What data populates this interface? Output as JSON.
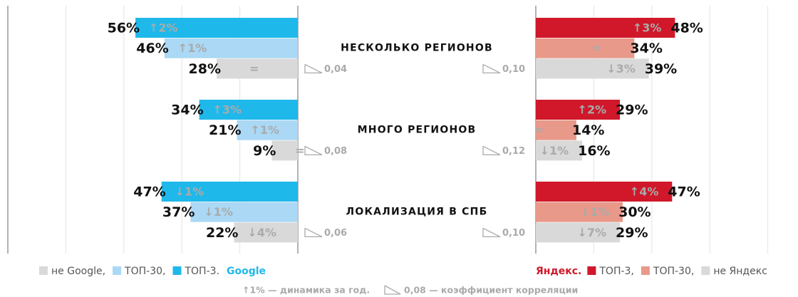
{
  "chart_data": {
    "type": "bar",
    "orientation": "horizontal",
    "categories": [
      "НЕСКОЛЬКО РЕГИОНОВ",
      "МНОГО РЕГИОНОВ",
      "ЛОКАЛИЗАЦИЯ В СПБ"
    ],
    "xlim": [
      0,
      100
    ],
    "xticks": [
      0,
      20,
      40,
      60,
      80,
      100
    ],
    "grid": true,
    "panels": [
      {
        "name": "Google",
        "name_color": "#1fb8ea",
        "direction": "left",
        "series": [
          {
            "name": "ТОП-3.",
            "color": "#1fb8ea",
            "values": [
              56,
              34,
              47
            ],
            "value_labels": [
              "56%",
              "34%",
              "47%"
            ],
            "changes": [
              "↑2%",
              "↑3%",
              "↓1%"
            ]
          },
          {
            "name": "ТОП-30,",
            "color": "#aad8f5",
            "values": [
              46,
              21,
              37
            ],
            "value_labels": [
              "46%",
              "21%",
              "37%"
            ],
            "changes": [
              "↑1%",
              "↑1%",
              "↓1%"
            ]
          },
          {
            "name": "не Google,",
            "color": "#d9d9d9",
            "values": [
              28,
              9,
              22
            ],
            "value_labels": [
              "28%",
              "9%",
              "22%"
            ],
            "changes": [
              "=",
              "=",
              "↓4%"
            ]
          }
        ],
        "correlation": [
          "0,04",
          "0,08",
          "0,06"
        ]
      },
      {
        "name": "Яндекс.",
        "name_color": "#d0182a",
        "direction": "right",
        "series": [
          {
            "name": "ТОП-3,",
            "color": "#d0182a",
            "values": [
              48,
              29,
              47
            ],
            "value_labels": [
              "48%",
              "29%",
              "47%"
            ],
            "changes": [
              "↑3%",
              "↑2%",
              "↑4%"
            ]
          },
          {
            "name": "ТОП-30,",
            "color": "#e8998a",
            "values": [
              34,
              14,
              30
            ],
            "value_labels": [
              "34%",
              "14%",
              "30%"
            ],
            "changes": [
              "=",
              "=",
              "↓1%"
            ]
          },
          {
            "name": "не Яндекс",
            "color": "#d9d9d9",
            "values": [
              39,
              16,
              29
            ],
            "value_labels": [
              "39%",
              "16%",
              "29%"
            ],
            "changes": [
              "↓3%",
              "↓1%",
              "↓7%"
            ]
          }
        ],
        "correlation": [
          "0,10",
          "0,12",
          "0,10"
        ]
      }
    ],
    "notes": [
      "↑1% — динамика за год.",
      "0,08 — коэффициент корреляции"
    ]
  }
}
